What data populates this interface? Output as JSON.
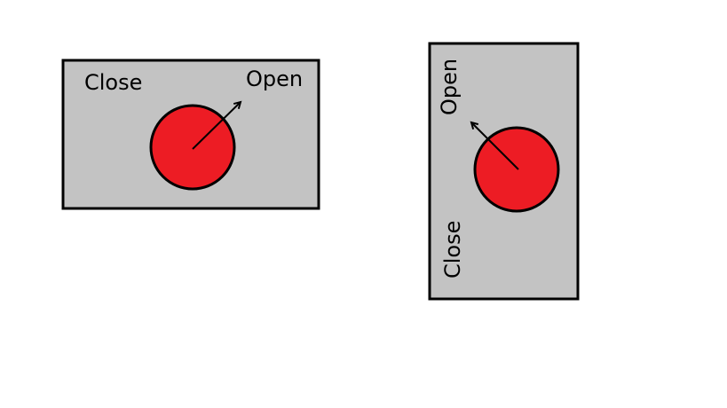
{
  "colors": {
    "background": "#ffffff",
    "panel_fill": "#c3c3c3",
    "outline": "#000000",
    "knob": "#ed1c24"
  },
  "horizontal_switch": {
    "close_label": "Close",
    "open_label": "Open",
    "pointer_icon": "arrow-up-right-icon"
  },
  "vertical_switch": {
    "open_label": "Open",
    "close_label": "Close",
    "pointer_icon": "arrow-up-left-icon"
  }
}
